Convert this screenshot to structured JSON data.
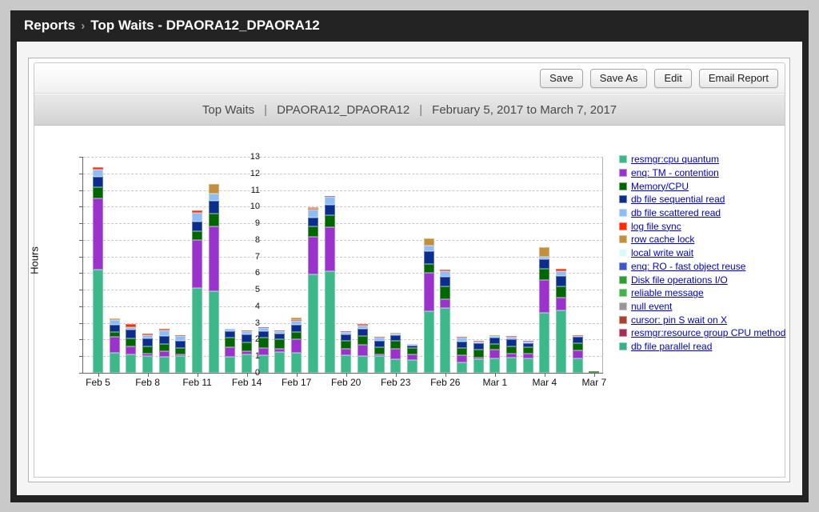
{
  "window": {
    "breadcrumb_root": "Reports",
    "breadcrumb_separator": "›",
    "breadcrumb_current": "Top Waits - DPAORA12_DPAORA12"
  },
  "toolbar": {
    "buttons": [
      "Save",
      "Save As",
      "Edit",
      "Email Report"
    ]
  },
  "report_header": {
    "title": "Top Waits",
    "separator": "|",
    "database": "DPAORA12_DPAORA12",
    "date_range": "February 5, 2017 to March 7, 2017"
  },
  "chart_data": {
    "type": "bar",
    "stacked": true,
    "title": "Top Waits | DPAORA12_DPAORA12 | February 5, 2017 to March 7, 2017",
    "xlabel": "",
    "ylabel": "Hours",
    "ylim": [
      0,
      13
    ],
    "y_ticks": [
      0,
      1,
      2,
      3,
      4,
      5,
      6,
      7,
      8,
      9,
      10,
      11,
      12,
      13
    ],
    "grid": "dashed-horizontal",
    "legend_position": "right",
    "categories": [
      "Feb 5",
      "Feb 6",
      "Feb 7",
      "Feb 8",
      "Feb 9",
      "Feb 10",
      "Feb 11",
      "Feb 12",
      "Feb 13",
      "Feb 14",
      "Feb 15",
      "Feb 16",
      "Feb 17",
      "Feb 18",
      "Feb 19",
      "Feb 20",
      "Feb 21",
      "Feb 22",
      "Feb 23",
      "Feb 24",
      "Feb 25",
      "Feb 26",
      "Feb 27",
      "Feb 28",
      "Mar 1",
      "Mar 2",
      "Mar 3",
      "Mar 4",
      "Mar 5",
      "Mar 6",
      "Mar 7"
    ],
    "x_tick_labels": [
      "Feb 5",
      "Feb 8",
      "Feb 11",
      "Feb 14",
      "Feb 17",
      "Feb 20",
      "Feb 23",
      "Feb 26",
      "Mar 1",
      "Mar 4",
      "Mar 7"
    ],
    "x_tick_every": 3,
    "series": [
      {
        "name": "resmgr:cpu quantum",
        "color": "#3cb88a",
        "values": [
          6.2,
          1.2,
          1.1,
          1.0,
          0.95,
          1.0,
          5.1,
          4.9,
          0.95,
          1.1,
          1.05,
          1.25,
          1.2,
          5.9,
          6.1,
          1.05,
          1.0,
          1.0,
          0.8,
          0.75,
          3.7,
          3.9,
          0.65,
          0.8,
          0.85,
          0.9,
          0.85,
          3.6,
          3.75,
          0.85,
          0
        ]
      },
      {
        "name": "enq: TM - contention",
        "color": "#9933cc",
        "values": [
          4.3,
          0.95,
          0.5,
          0.15,
          0.35,
          0.1,
          2.9,
          3.9,
          0.6,
          0.2,
          0.45,
          0.2,
          0.8,
          2.3,
          2.65,
          0.4,
          0.7,
          0.1,
          0.65,
          0.35,
          2.3,
          0.55,
          0.4,
          0.1,
          0.55,
          0.25,
          0.3,
          2.0,
          0.8,
          0.5,
          0
        ]
      },
      {
        "name": "Memory/CPU",
        "color": "#006600",
        "values": [
          0.65,
          0.3,
          0.45,
          0.45,
          0.45,
          0.4,
          0.5,
          0.8,
          0.55,
          0.55,
          0.6,
          0.55,
          0.45,
          0.6,
          0.75,
          0.5,
          0.5,
          0.45,
          0.5,
          0.4,
          0.55,
          0.75,
          0.45,
          0.5,
          0.35,
          0.45,
          0.4,
          0.65,
          0.65,
          0.45,
          0.12
        ]
      },
      {
        "name": "db file sequential read",
        "color": "#0b2e8c",
        "values": [
          0.65,
          0.45,
          0.55,
          0.45,
          0.45,
          0.45,
          0.6,
          0.75,
          0.4,
          0.45,
          0.4,
          0.35,
          0.45,
          0.55,
          0.6,
          0.35,
          0.45,
          0.4,
          0.3,
          0.15,
          0.75,
          0.6,
          0.4,
          0.4,
          0.35,
          0.4,
          0.25,
          0.6,
          0.65,
          0.35,
          0
        ]
      },
      {
        "name": "db file scattered read",
        "color": "#90bcf4",
        "values": [
          0.45,
          0.3,
          0.15,
          0.2,
          0.35,
          0.25,
          0.55,
          0.45,
          0.15,
          0.2,
          0.2,
          0.15,
          0.25,
          0.45,
          0.5,
          0.15,
          0.2,
          0.15,
          0.1,
          0.1,
          0.35,
          0.3,
          0.2,
          0.1,
          0.1,
          0.15,
          0.08,
          0.15,
          0.25,
          0.05,
          0
        ]
      },
      {
        "name": "log file sync",
        "color": "#ff2a00",
        "values": [
          0.12,
          0,
          0.2,
          0.1,
          0.12,
          0.05,
          0.12,
          0,
          0,
          0.05,
          0,
          0,
          0.05,
          0.08,
          0,
          0,
          0.08,
          0.08,
          0,
          0,
          0,
          0.1,
          0.05,
          0.05,
          0,
          0.05,
          0,
          0,
          0.15,
          0.08,
          0
        ]
      },
      {
        "name": "row cache lock",
        "color": "#c28f3c",
        "values": [
          0,
          0.08,
          0,
          0,
          0,
          0,
          0,
          0.55,
          0,
          0,
          0,
          0,
          0.1,
          0.1,
          0,
          0,
          0,
          0,
          0.08,
          0,
          0.45,
          0,
          0,
          0,
          0.08,
          0,
          0,
          0.55,
          0,
          0,
          0
        ]
      },
      {
        "name": "local write wait",
        "color": "#d8fbf6",
        "values": [
          0,
          0,
          0,
          0,
          0,
          0,
          0,
          0,
          0,
          0,
          0,
          0,
          0,
          0,
          0,
          0,
          0,
          0,
          0,
          0,
          0,
          0,
          0,
          0,
          0,
          0,
          0,
          0,
          0,
          0,
          0
        ]
      },
      {
        "name": "enq: RO - fast object reuse",
        "color": "#4154c8",
        "values": [
          0,
          0,
          0,
          0,
          0,
          0,
          0,
          0,
          0,
          0,
          0,
          0,
          0,
          0,
          0,
          0,
          0,
          0,
          0,
          0,
          0,
          0,
          0,
          0,
          0,
          0,
          0,
          0,
          0,
          0,
          0
        ]
      },
      {
        "name": "Disk file operations I/O",
        "color": "#2e9e33",
        "values": [
          0,
          0,
          0,
          0,
          0,
          0,
          0,
          0,
          0,
          0,
          0,
          0,
          0,
          0,
          0,
          0,
          0,
          0,
          0,
          0,
          0,
          0,
          0,
          0,
          0,
          0,
          0,
          0,
          0,
          0,
          0
        ]
      },
      {
        "name": "reliable message",
        "color": "#43b24b",
        "values": [
          0,
          0,
          0,
          0,
          0,
          0,
          0,
          0,
          0,
          0,
          0,
          0,
          0,
          0,
          0,
          0,
          0,
          0,
          0,
          0,
          0,
          0,
          0,
          0,
          0,
          0,
          0,
          0,
          0,
          0,
          0
        ]
      },
      {
        "name": "null event",
        "color": "#979797",
        "values": [
          0,
          0,
          0,
          0,
          0,
          0,
          0,
          0,
          0,
          0,
          0,
          0,
          0,
          0,
          0,
          0,
          0,
          0,
          0,
          0,
          0,
          0,
          0,
          0,
          0,
          0,
          0,
          0,
          0,
          0,
          0
        ]
      },
      {
        "name": "cursor: pin S wait on X",
        "color": "#a8432e",
        "values": [
          0,
          0,
          0,
          0,
          0,
          0,
          0,
          0,
          0,
          0,
          0,
          0,
          0,
          0,
          0,
          0,
          0,
          0,
          0,
          0,
          0,
          0,
          0,
          0,
          0,
          0,
          0,
          0,
          0,
          0,
          0
        ]
      },
      {
        "name": "resmgr:resource group CPU method",
        "color": "#a62b55",
        "values": [
          0,
          0,
          0,
          0,
          0,
          0,
          0,
          0,
          0,
          0,
          0.05,
          0.05,
          0,
          0,
          0.05,
          0.05,
          0,
          0,
          0,
          0,
          0,
          0,
          0,
          0,
          0,
          0,
          0.05,
          0,
          0,
          0,
          0
        ]
      },
      {
        "name": "db file parallel read",
        "color": "#35b183",
        "values": [
          0,
          0,
          0,
          0,
          0,
          0,
          0,
          0,
          0,
          0,
          0,
          0,
          0,
          0,
          0,
          0,
          0,
          0,
          0,
          0,
          0,
          0,
          0,
          0,
          0,
          0,
          0,
          0,
          0,
          0,
          0
        ]
      }
    ]
  }
}
